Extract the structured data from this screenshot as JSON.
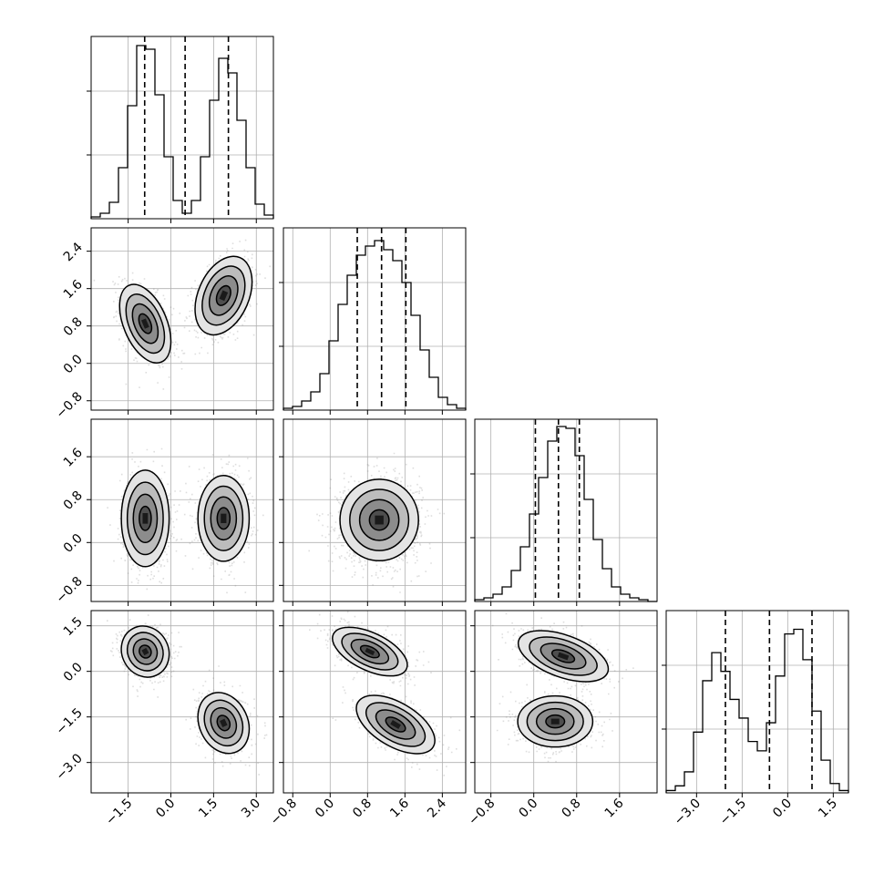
{
  "chart_data": {
    "type": "corner",
    "parameters": 4,
    "grid": true,
    "axes": {
      "x": [
        {
          "lim": [
            -2.8,
            3.6
          ],
          "ticks": [
            -1.5,
            0.0,
            1.5,
            3.0
          ],
          "labels": [
            "−1.5",
            "0.0",
            "1.5",
            "3.0"
          ]
        },
        {
          "lim": [
            -1.0,
            2.9
          ],
          "ticks": [
            -0.8,
            0.0,
            0.8,
            1.6,
            2.4
          ],
          "labels": [
            "−0.8",
            "0.0",
            "0.8",
            "1.6",
            "2.4"
          ]
        },
        {
          "lim": [
            -1.1,
            2.3
          ],
          "ticks": [
            -0.8,
            0.0,
            0.8,
            1.6
          ],
          "labels": [
            "−0.8",
            "0.0",
            "0.8",
            "1.6"
          ]
        },
        {
          "lim": [
            -4.0,
            2.0
          ],
          "ticks": [
            -3.0,
            -1.5,
            0.0,
            1.5
          ],
          "labels": [
            "−3.0",
            "−1.5",
            "0.0",
            "1.5"
          ]
        }
      ],
      "y": [
        null,
        {
          "lim": [
            -1.0,
            2.9
          ],
          "ticks": [
            -0.8,
            0.0,
            0.8,
            1.6,
            2.4
          ],
          "labels": [
            "−0.8",
            "0.0",
            "0.8",
            "1.6",
            "2.4"
          ]
        },
        {
          "lim": [
            -1.1,
            2.3
          ],
          "ticks": [
            -0.8,
            0.0,
            0.8,
            1.6
          ],
          "labels": [
            "−0.8",
            "0.0",
            "0.8",
            "1.6"
          ]
        },
        {
          "lim": [
            -4.0,
            2.0
          ],
          "ticks": [
            -3.0,
            -1.5,
            0.0,
            1.5
          ],
          "labels": [
            "−3.0",
            "−1.5",
            "0.0",
            "1.5"
          ]
        }
      ]
    },
    "histograms": [
      {
        "param": 0,
        "bin_edges": [
          -2.8,
          -2.48,
          -2.16,
          -1.84,
          -1.52,
          -1.2,
          -0.88,
          -0.56,
          -0.24,
          0.08,
          0.4,
          0.72,
          1.04,
          1.36,
          1.68,
          2.0,
          2.32,
          2.64,
          2.96,
          3.28,
          3.6
        ],
        "counts": [
          1,
          3,
          9,
          28,
          62,
          95,
          93,
          68,
          34,
          10,
          3,
          10,
          34,
          65,
          88,
          80,
          54,
          28,
          8,
          2
        ],
        "ymax": 100,
        "quantiles": [
          -0.92,
          0.5,
          2.02
        ]
      },
      {
        "param": 1,
        "bin_edges": [
          -1.0,
          -0.805,
          -0.61,
          -0.415,
          -0.22,
          -0.025,
          0.17,
          0.365,
          0.56,
          0.755,
          0.95,
          1.145,
          1.34,
          1.535,
          1.73,
          1.925,
          2.12,
          2.315,
          2.51,
          2.705,
          2.9
        ],
        "counts": [
          1,
          2,
          5,
          10,
          20,
          38,
          58,
          74,
          85,
          90,
          93,
          88,
          82,
          70,
          52,
          33,
          18,
          7,
          3,
          1
        ],
        "ymax": 100,
        "quantiles": [
          0.58,
          1.1,
          1.62
        ]
      },
      {
        "param": 2,
        "bin_edges": [
          -1.1,
          -0.93,
          -0.76,
          -0.59,
          -0.42,
          -0.25,
          -0.08,
          0.09,
          0.26,
          0.43,
          0.6,
          0.77,
          0.94,
          1.11,
          1.28,
          1.45,
          1.62,
          1.79,
          1.96,
          2.13,
          2.3
        ],
        "counts": [
          1,
          2,
          4,
          8,
          17,
          30,
          48,
          68,
          88,
          96,
          95,
          80,
          56,
          34,
          18,
          8,
          4,
          2,
          1,
          0
        ],
        "ymax": 100,
        "quantiles": [
          0.03,
          0.46,
          0.85
        ]
      },
      {
        "param": 3,
        "bin_edges": [
          -4.0,
          -3.7,
          -3.4,
          -3.1,
          -2.8,
          -2.5,
          -2.2,
          -1.9,
          -1.6,
          -1.3,
          -1.0,
          -0.7,
          -0.4,
          -0.1,
          0.2,
          0.5,
          0.8,
          1.1,
          1.4,
          1.7,
          2.0
        ],
        "counts": [
          1,
          3,
          9,
          26,
          48,
          60,
          52,
          40,
          32,
          22,
          18,
          30,
          50,
          68,
          70,
          57,
          35,
          14,
          4,
          1
        ],
        "ymax": 78,
        "quantiles": [
          -2.05,
          -0.6,
          0.8
        ]
      }
    ],
    "scatter_panels": [
      {
        "x_param": 0,
        "y_param": 1,
        "clusters": [
          {
            "mx": -0.9,
            "my": 0.85,
            "sx": 0.45,
            "sy": 0.42,
            "rho": -0.45,
            "n": 820
          },
          {
            "mx": 1.85,
            "my": 1.45,
            "sx": 0.5,
            "sy": 0.42,
            "rho": 0.35,
            "n": 820
          }
        ]
      },
      {
        "x_param": 0,
        "y_param": 2,
        "clusters": [
          {
            "mx": -0.9,
            "my": 0.45,
            "sx": 0.42,
            "sy": 0.45,
            "rho": 0.0,
            "n": 820
          },
          {
            "mx": 1.85,
            "my": 0.45,
            "sx": 0.45,
            "sy": 0.4,
            "rho": 0.0,
            "n": 820
          }
        ]
      },
      {
        "x_param": 1,
        "y_param": 2,
        "clusters": [
          {
            "mx": 1.05,
            "my": 0.42,
            "sx": 0.42,
            "sy": 0.38,
            "rho": 0.0,
            "n": 1600
          }
        ]
      },
      {
        "x_param": 0,
        "y_param": 3,
        "clusters": [
          {
            "mx": -0.9,
            "my": 0.65,
            "sx": 0.42,
            "sy": 0.42,
            "rho": -0.1,
            "n": 820
          },
          {
            "mx": 1.85,
            "my": -1.7,
            "sx": 0.45,
            "sy": 0.5,
            "rho": -0.2,
            "n": 820
          }
        ]
      },
      {
        "x_param": 1,
        "y_param": 3,
        "clusters": [
          {
            "mx": 0.85,
            "my": 0.65,
            "sx": 0.4,
            "sy": 0.4,
            "rho": -0.55,
            "n": 820
          },
          {
            "mx": 1.4,
            "my": -1.75,
            "sx": 0.42,
            "sy": 0.48,
            "rho": -0.55,
            "n": 820
          }
        ]
      },
      {
        "x_param": 2,
        "y_param": 3,
        "clusters": [
          {
            "mx": 0.55,
            "my": 0.5,
            "sx": 0.42,
            "sy": 0.42,
            "rho": -0.5,
            "n": 820
          },
          {
            "mx": 0.4,
            "my": -1.65,
            "sx": 0.35,
            "sy": 0.42,
            "rho": 0.0,
            "n": 820
          }
        ]
      }
    ],
    "contour_levels_sigma": [
      0.5,
      1.0,
      1.5,
      2.0
    ]
  },
  "colors": {
    "line": "#000000",
    "grid": "#b0b0b0",
    "points": "#8a8a8a",
    "density_light": "#dcdcdc",
    "density_dark": "#000000"
  }
}
